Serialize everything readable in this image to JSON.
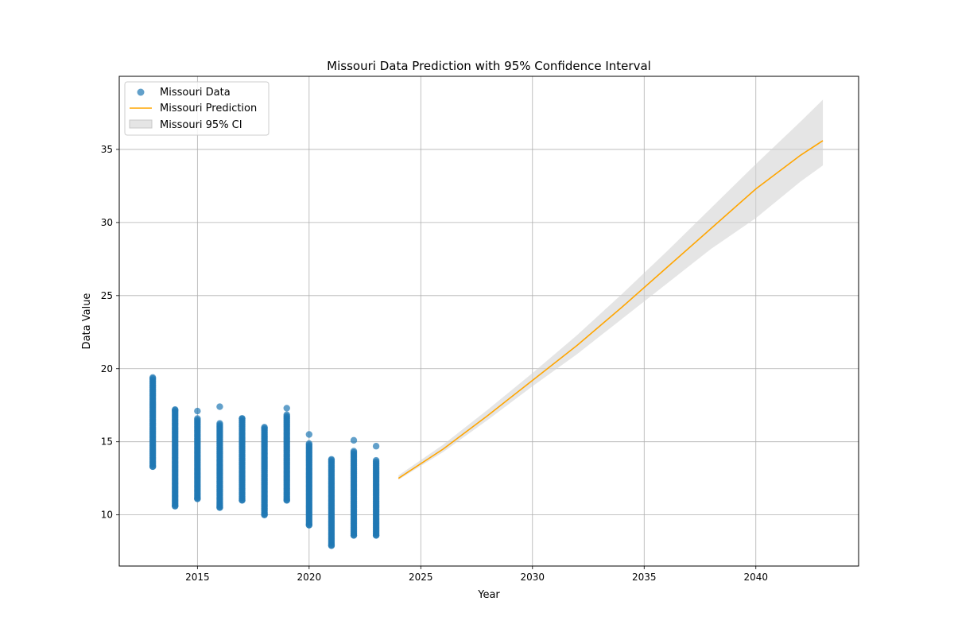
{
  "chart_data": {
    "type": "scatter",
    "title": "Missouri Data Prediction with 95% Confidence Interval",
    "xlabel": "Year",
    "ylabel": "Data Value",
    "xlim": [
      2011.5,
      2044.6
    ],
    "ylim": [
      6.5,
      40.0
    ],
    "x_ticks": [
      2015,
      2020,
      2025,
      2030,
      2035,
      2040
    ],
    "y_ticks": [
      10,
      15,
      20,
      25,
      30,
      35
    ],
    "grid": true,
    "legend_position": "top-left",
    "legend": [
      {
        "label": "Missouri Data",
        "kind": "marker",
        "color": "#1f77b4"
      },
      {
        "label": "Missouri Prediction",
        "kind": "line",
        "color": "#ffa500"
      },
      {
        "label": "Missouri 95% CI",
        "kind": "patch",
        "color": "#d3d3d3"
      }
    ],
    "series": [
      {
        "name": "Missouri Data",
        "kind": "scatter",
        "color": "#1f77b4",
        "groups": [
          {
            "x": 2013,
            "min": 13.3,
            "max": 19.4,
            "outliers": [
              19.4,
              13.3
            ]
          },
          {
            "x": 2014,
            "min": 10.6,
            "max": 17.2,
            "outliers": [
              17.2,
              10.6
            ]
          },
          {
            "x": 2015,
            "min": 11.1,
            "max": 16.6,
            "outliers": [
              17.1,
              11.1
            ]
          },
          {
            "x": 2016,
            "min": 10.5,
            "max": 16.3,
            "outliers": [
              17.4,
              10.5
            ]
          },
          {
            "x": 2017,
            "min": 11.0,
            "max": 16.6,
            "outliers": [
              16.6,
              11.0
            ]
          },
          {
            "x": 2018,
            "min": 10.0,
            "max": 16.0,
            "outliers": [
              16.0,
              10.0
            ]
          },
          {
            "x": 2019,
            "min": 11.0,
            "max": 16.9,
            "outliers": [
              17.3,
              11.0
            ]
          },
          {
            "x": 2020,
            "min": 9.3,
            "max": 14.9,
            "outliers": [
              15.5,
              9.3
            ]
          },
          {
            "x": 2021,
            "min": 7.9,
            "max": 13.8,
            "outliers": [
              13.8,
              7.9
            ]
          },
          {
            "x": 2022,
            "min": 8.6,
            "max": 14.4,
            "outliers": [
              15.1,
              8.6
            ]
          },
          {
            "x": 2023,
            "min": 8.6,
            "max": 13.8,
            "outliers": [
              14.7,
              8.6
            ]
          }
        ]
      },
      {
        "name": "Missouri Prediction",
        "kind": "line",
        "color": "#ffa500",
        "x": [
          2024,
          2026,
          2028,
          2030,
          2032,
          2034,
          2036,
          2038,
          2040,
          2042,
          2043
        ],
        "y": [
          12.5,
          14.5,
          16.8,
          19.2,
          21.6,
          24.2,
          26.9,
          29.6,
          32.3,
          34.6,
          35.6
        ]
      },
      {
        "name": "Missouri 95% CI",
        "kind": "band",
        "color": "#d3d3d3",
        "x": [
          2024,
          2026,
          2028,
          2030,
          2032,
          2034,
          2036,
          2038,
          2040,
          2042,
          2043
        ],
        "lower": [
          12.4,
          14.3,
          16.5,
          18.8,
          21.0,
          23.4,
          25.8,
          28.2,
          30.3,
          32.8,
          33.9
        ],
        "upper": [
          12.7,
          14.8,
          17.2,
          19.7,
          22.3,
          25.1,
          28.0,
          31.0,
          34.0,
          36.9,
          38.4
        ]
      }
    ]
  }
}
